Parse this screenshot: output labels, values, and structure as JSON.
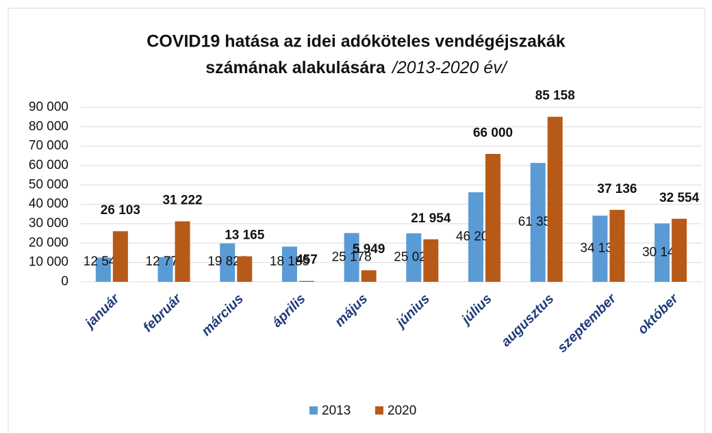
{
  "chart_data": {
    "type": "bar",
    "title": [
      "COVID19 hatása az idei adóköteles vendégéjszakák",
      "számának alakulására"
    ],
    "subtitle": "/2013-2020 év/",
    "categories": [
      "január",
      "február",
      "március",
      "április",
      "május",
      "június",
      "július",
      "augusztus",
      "szeptember",
      "október"
    ],
    "series": [
      {
        "name": "2013",
        "color": "#5b9bd5",
        "values": [
          12542,
          12774,
          19825,
          18185,
          25178,
          25026,
          46200,
          61350,
          34136,
          30145
        ],
        "value_labels": [
          "12 542",
          "12 774",
          "19 825",
          "18 185",
          "25 178",
          "25 026",
          "46 200",
          "61 350",
          "34 136",
          "30 145"
        ]
      },
      {
        "name": "2020",
        "color": "#b85a17",
        "values": [
          26103,
          31222,
          13165,
          457,
          5949,
          21954,
          66000,
          85158,
          37136,
          32554
        ],
        "value_labels": [
          "26 103",
          "31 222",
          "13 165",
          "457",
          "5 949",
          "21 954",
          "66 000",
          "85 158",
          "37 136",
          "32 554"
        ]
      }
    ],
    "ylim": [
      0,
      90000
    ],
    "yticks": [
      0,
      {
        "value": 10000,
        "label": "10 000"
      },
      {
        "value": 20000,
        "label": "20 000"
      },
      {
        "value": 30000,
        "label": "30 000"
      },
      {
        "value": 40000,
        "label": "40 000"
      },
      {
        "value": 50000,
        "label": "50 000"
      },
      {
        "value": 60000,
        "label": "60 000"
      },
      {
        "value": 70000,
        "label": "70 000"
      },
      {
        "value": 80000,
        "label": "80 000"
      },
      {
        "value": 90000,
        "label": "90 000"
      }
    ],
    "grid": true,
    "legend": "bottom"
  }
}
